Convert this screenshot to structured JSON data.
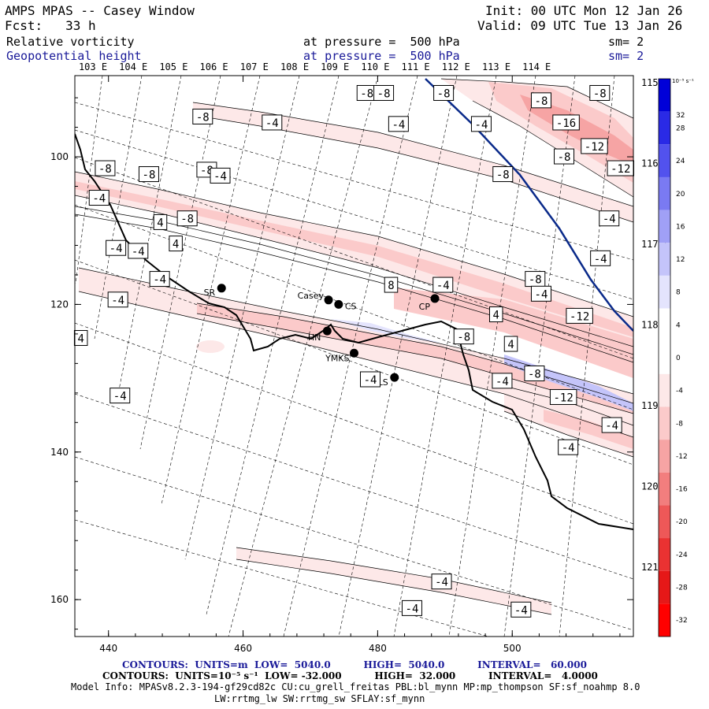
{
  "header": {
    "title": "AMPS MPAS -- Casey Window",
    "init": "Init: 00 UTC Mon 12 Jan 26",
    "fcst": "Fcst:   33 h",
    "valid": "Valid: 09 UTC Tue 13 Jan 26",
    "field1_name": "Relative vorticity",
    "field1_level": "at pressure =  500 hPa",
    "field1_sm": "sm= 2",
    "field2_name": "Geopotential height",
    "field2_level": "at pressure =  500 hPa",
    "field2_sm": "sm= 2"
  },
  "longitude_labels": [
    "103 E",
    "104 E",
    "105 E",
    "106 E",
    "107 E",
    "108 E",
    "109 E",
    "110 E",
    "111 E",
    "112 E",
    "113 E",
    "114 E"
  ],
  "right_lon_labels": [
    "115 E",
    "116 E",
    "117 E",
    "118 E",
    "119 E",
    "120 E",
    "121 E"
  ],
  "axes": {
    "x_ticks": [
      "440",
      "460",
      "480",
      "500"
    ],
    "y_ticks": [
      "100",
      "120",
      "140",
      "160"
    ],
    "x_range": [
      435,
      518
    ],
    "y_range": [
      89,
      165
    ]
  },
  "colorbar": {
    "units": "10⁻⁵ s⁻¹",
    "levels": [
      32,
      28,
      24,
      20,
      16,
      12,
      8,
      4,
      0,
      -4,
      -8,
      -12,
      -16,
      -20,
      -24,
      -28,
      -32
    ],
    "labels": [
      "32",
      "28",
      "24",
      "20",
      "16",
      "12",
      "8",
      "4",
      "0",
      "-4",
      "-8",
      "-12",
      "-16",
      "-20",
      "-24",
      "-28",
      "-32"
    ],
    "colors": [
      "#0000d8",
      "#2a2ae6",
      "#5252ee",
      "#7a7af2",
      "#a0a0f6",
      "#c4c4fa",
      "#e4e4fd",
      "#ffffff",
      "#ffffff",
      "#fde8e8",
      "#fbcaca",
      "#f6a4a4",
      "#f27e7e",
      "#ee5858",
      "#ea3232",
      "#e61818",
      "#ff0000"
    ]
  },
  "stations": [
    {
      "name": "SR",
      "x": 456.8,
      "y": 117.8
    },
    {
      "name": "Casey",
      "x": 472.7,
      "y": 119.4
    },
    {
      "name": "CS",
      "x": 474.2,
      "y": 120.0
    },
    {
      "name": "CP",
      "x": 488.5,
      "y": 119.2
    },
    {
      "name": "HN",
      "x": 472.5,
      "y": 123.6
    },
    {
      "name": "YMKS",
      "x": 476.5,
      "y": 126.6
    },
    {
      "name": "LS",
      "x": 482.5,
      "y": 129.9
    }
  ],
  "contour_labels": [
    {
      "text": "-8",
      "x": 478.4,
      "y": 91.4
    },
    {
      "text": "-8",
      "x": 480.9,
      "y": 91.4
    },
    {
      "text": "-8",
      "x": 489.8,
      "y": 91.4
    },
    {
      "text": "-8",
      "x": 513.0,
      "y": 91.4
    },
    {
      "text": "-8",
      "x": 504.3,
      "y": 92.4
    },
    {
      "text": "-8",
      "x": 454.0,
      "y": 94.6
    },
    {
      "text": "-4",
      "x": 464.3,
      "y": 95.4
    },
    {
      "text": "-4",
      "x": 483.1,
      "y": 95.6
    },
    {
      "text": "-4",
      "x": 495.4,
      "y": 95.6
    },
    {
      "text": "-16",
      "x": 508.0,
      "y": 95.4
    },
    {
      "text": "-12",
      "x": 512.2,
      "y": 98.6
    },
    {
      "text": "-8",
      "x": 507.7,
      "y": 100.0
    },
    {
      "text": "-8",
      "x": 454.6,
      "y": 101.8
    },
    {
      "text": "-8",
      "x": 439.5,
      "y": 101.6
    },
    {
      "text": "-8",
      "x": 446.0,
      "y": 102.4
    },
    {
      "text": "-4",
      "x": 456.6,
      "y": 102.6
    },
    {
      "text": "-12",
      "x": 516.1,
      "y": 101.6
    },
    {
      "text": "-8",
      "x": 498.6,
      "y": 102.4
    },
    {
      "text": "-4",
      "x": 438.6,
      "y": 105.6
    },
    {
      "text": "-8",
      "x": 451.7,
      "y": 108.4
    },
    {
      "text": "4",
      "x": 447.7,
      "y": 108.9
    },
    {
      "text": "-4",
      "x": 514.4,
      "y": 108.4
    },
    {
      "text": "4",
      "x": 450.0,
      "y": 111.8
    },
    {
      "text": "-4",
      "x": 441.1,
      "y": 112.4
    },
    {
      "text": "-4",
      "x": 444.4,
      "y": 112.8
    },
    {
      "text": "-4",
      "x": 513.1,
      "y": 113.8
    },
    {
      "text": "-4",
      "x": 447.6,
      "y": 116.6
    },
    {
      "text": "-4",
      "x": 489.7,
      "y": 117.4
    },
    {
      "text": "-8",
      "x": 503.4,
      "y": 116.6
    },
    {
      "text": "8",
      "x": 482.0,
      "y": 117.4
    },
    {
      "text": "-4",
      "x": 441.4,
      "y": 119.4
    },
    {
      "text": "-4",
      "x": 504.3,
      "y": 118.6
    },
    {
      "text": "4",
      "x": 497.6,
      "y": 121.4
    },
    {
      "text": "-12",
      "x": 510.0,
      "y": 121.6
    },
    {
      "text": "4",
      "x": 435.9,
      "y": 124.6
    },
    {
      "text": "-8",
      "x": 492.8,
      "y": 124.4
    },
    {
      "text": "4",
      "x": 499.8,
      "y": 125.4
    },
    {
      "text": "-8",
      "x": 503.3,
      "y": 129.4
    },
    {
      "text": "-4",
      "x": 478.9,
      "y": 130.2
    },
    {
      "text": "-4",
      "x": 498.5,
      "y": 130.4
    },
    {
      "text": "-4",
      "x": 441.7,
      "y": 132.4
    },
    {
      "text": "-12",
      "x": 507.6,
      "y": 132.6
    },
    {
      "text": "-4",
      "x": 514.8,
      "y": 136.4
    },
    {
      "text": "-4",
      "x": 508.3,
      "y": 139.4
    },
    {
      "text": "-4",
      "x": 489.5,
      "y": 157.6
    },
    {
      "text": "-4",
      "x": 485.1,
      "y": 161.2
    },
    {
      "text": "-4",
      "x": 501.3,
      "y": 161.4
    }
  ],
  "footer": {
    "contours1": "CONTOURS:  UNITS=m  LOW=  5040.0          HIGH=  5040.0          INTERVAL=   60.000",
    "contours2": "CONTOURS:  UNITS=10⁻⁵ s⁻¹  LOW= -32.000          HIGH=  32.000          INTERVAL=   4.0000",
    "model_info1": "Model Info: MPASv8.2.3-194-gf29cd82c CU:cu_grell_freitas PBL:bl_mynn MP:mp_thompson SF:sf_noahmp 8.0",
    "model_info2": "LW:rrtmg_lw SW:rrtmg_sw SFLAY:sf_mynn"
  },
  "colors": {
    "navy": "#1a1a99",
    "height_contour": "#0a2a8a",
    "coast": "#000000"
  }
}
